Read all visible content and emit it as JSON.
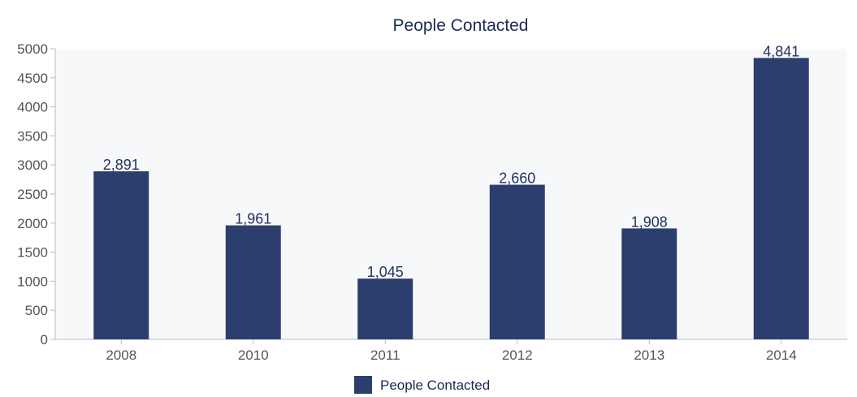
{
  "chart_data": {
    "type": "bar",
    "title": "People Contacted",
    "xlabel": "",
    "ylabel": "",
    "categories": [
      "2008",
      "2010",
      "2011",
      "2012",
      "2013",
      "2014"
    ],
    "series": [
      {
        "name": "People Contacted",
        "values": [
          2891,
          1961,
          1045,
          2660,
          1908,
          4841
        ],
        "labels": [
          "2,891",
          "1,961",
          "1,045",
          "2,660",
          "1,908",
          "4,841"
        ]
      }
    ],
    "ylim": [
      0,
      5000
    ],
    "yticks": [
      0,
      500,
      1000,
      1500,
      2000,
      2500,
      3000,
      3500,
      4000,
      4500,
      5000
    ],
    "grid": false,
    "legend_position": "bottom-center",
    "colors": {
      "bar": "#2c3e6e",
      "plot_background": "#f7f8fa",
      "axis": "#b8bcc4"
    }
  }
}
